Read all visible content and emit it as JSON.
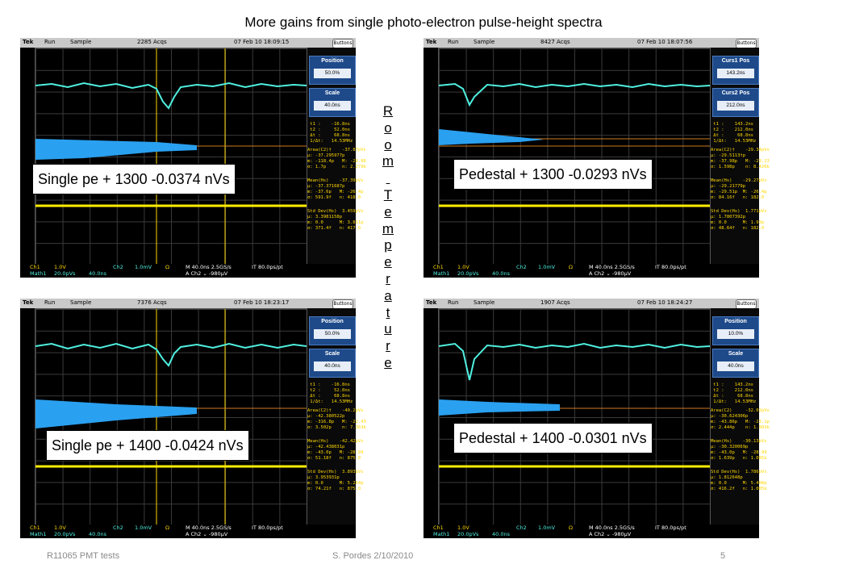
{
  "title": "More gains from single photo-electron pulse-height spectra",
  "vertical_text": [
    "R",
    "o",
    "o",
    "m",
    "",
    "T",
    "e",
    "m",
    "p",
    "e",
    "r",
    "a",
    "t",
    "u",
    "r",
    "e"
  ],
  "scopes": [
    {
      "topbar": {
        "brand": "Tek",
        "run": "Run",
        "mode": "Sample",
        "acqs": "2285 Acqs",
        "time": "07 Feb 10 18:09:15",
        "btn": "Buttons"
      },
      "menu1": {
        "title": "Position",
        "value": "50.0%"
      },
      "menu2": {
        "title": "Scale",
        "value": "40.0ns"
      },
      "meas": " t1 :    -16.8ns\n t2 :     52.0ns\n Δt :     68.8ns\n 1/Δt:   14.53MHz",
      "meas2": "Area(C2)†    -37.87pVs\nμ: -37.295977p\nm: -118.4p   M: -28.86\nσ: 1.7p      n: 2.279k",
      "meas3": "Mean(Hs)    -37.39pVs\nμ: -37.371687p\nm: -37.6p   M: -26.4p\nσ: 591.9f   n: 418.0",
      "meas4": "Std Dev(Hs)  3.459pVs\nμ: 3.3981158p\nm: 0.0      M: 3.811p\nσ: 371.4f   n: 417.0",
      "bottom": {
        "ch1": "Ch1",
        "v1": "1.0V",
        "ch2": "Ch2",
        "v2": "1.0mV",
        "ohm": "Ω",
        "tb": "M 40.0ns 2.5GS/s",
        "pt": "IT 80.0ps/pt",
        "trig": "A  Ch2  ⌄  -980μV",
        "math": "Math1",
        "mv": "20.0pVs",
        "md": "40.0ns"
      },
      "label": "Single pe + 1300  -0.0374 nVs"
    },
    {
      "topbar": {
        "brand": "Tek",
        "run": "Run",
        "mode": "Sample",
        "acqs": "8427 Acqs",
        "time": "07 Feb 10 18:07:56",
        "btn": "Buttons"
      },
      "menu1": {
        "title": "Curs1 Pos",
        "value": "143.2ns"
      },
      "menu2": {
        "title": "Curs2 Pos",
        "value": "212.0ns"
      },
      "meas": " t1 :    143.2ns\n t2 :    212.0ns\n Δt :     68.8ns\n 1/Δt:   14.53MHz",
      "meas2": "Area(C2)†    -29.34pVs\nμ: -29.5113†p\nm: -37.98p   M: -23.23\nσ: 1.598p    n: 8.426k",
      "meas3": "Mean(Hs)    -29.27pVs\nμ: -29.21779p\nm: -29.51p  M: -26.4p\nσ: 84.16f   n: 182.0",
      "meas4": "Std Dev(Hs)  1.771pVs\nμ: 1.7807392p\nm: 0.0      M: 1.93p\nσ: 48.64f   n: 182.0",
      "bottom": {
        "ch1": "Ch1",
        "v1": "1.0V",
        "ch2": "Ch2",
        "v2": "1.0mV",
        "ohm": "Ω",
        "tb": "M 40.0ns 2.5GS/s",
        "pt": "IT 80.0ps/pt",
        "trig": "A  Ch2  ⌄  -980μV",
        "math": "Math1",
        "mv": "20.0pVs",
        "md": "40.0ns"
      },
      "label": "Pedestal + 1300  -0.0293 nVs"
    },
    {
      "topbar": {
        "brand": "Tek",
        "run": "Run",
        "mode": "Sample",
        "acqs": "7376 Acqs",
        "time": "07 Feb 10 18:23:17",
        "btn": "Buttons"
      },
      "menu1": {
        "title": "Position",
        "value": "50.0%"
      },
      "menu2": {
        "title": "Scale",
        "value": "40.0ns"
      },
      "meas": " t1 :    -16.8ns\n t2 :     52.0ns\n Δt :     68.8ns\n 1/Δt:   14.53MHz",
      "meas2": "Area(C2)†    -40.2pVs\nμ: -42.380522p\nm: -316.8p   M: -22.43\nσ: 3.502p    n: 7.363k",
      "meas3": "Mean(Hs)    -42.42pVs\nμ: -42.438031p\nm: -43.0p   M: -28.99\nσ: 51.18f   n: 875.0",
      "meas4": "Std Dev(Hs)  3.893pVs\nμ: 3.953931p\nm: 0.0      M: 5.264p\nσ: 74.21f   n: 875.0",
      "bottom": {
        "ch1": "Ch1",
        "v1": "1.0V",
        "ch2": "Ch2",
        "v2": "1.0mV",
        "ohm": "Ω",
        "tb": "M 40.0ns 2.5GS/s",
        "pt": "IT 80.0ps/pt",
        "trig": "A  Ch2  ⌄  -980μV",
        "math": "Math1",
        "mv": "20.0pVs",
        "md": "40.0ns"
      },
      "label": "Single pe + 1400  -0.0424 nVs"
    },
    {
      "topbar": {
        "brand": "Tek",
        "run": "Run",
        "mode": "Sample",
        "acqs": "1907 Acqs",
        "time": "07 Feb 10 18:24:27",
        "btn": "Buttons"
      },
      "menu1": {
        "title": "Position",
        "value": "10.0%"
      },
      "menu2": {
        "title": "Scale",
        "value": "40.0ns"
      },
      "meas": " t1 :    143.2ns\n t2 :    212.0ns\n Δt :     68.8ns\n 1/Δt:   14.53MHz",
      "meas2": "Area(C2)     -32.02pVs\nμ: -30.624306p\nm: -43.86p   M: -23.1p\nσ: 2.444p    n: 1.903k",
      "meas3": "Mean(Hs)    -30.13pVs\nμ: -30.320069p\nm: -43.0p   M: -28.99\nσ: 1.639p   n: 1.085k",
      "meas4": "Std Dev(Hs)  1.786pVs\nμ: 1.812648p\nm: 0.0      M: 5.408p\nσ: 416.2f   n: 1.085k",
      "bottom": {
        "ch1": "Ch1",
        "v1": "1.0V",
        "ch2": "Ch2",
        "v2": "1.0mV",
        "ohm": "Ω",
        "tb": "M 40.0ns 2.5GS/s",
        "pt": "IT 80.0ps/pt",
        "trig": "A  Ch2  ⌄  -980μV",
        "math": "Math1",
        "mv": "20.0pVs",
        "md": "40.0ns"
      },
      "label": "Pedestal + 1400  -0.0301 nVs"
    }
  ],
  "footer": {
    "left": "R11065 PMT tests",
    "center": "S. Pordes 2/10/2010",
    "page": "5"
  }
}
